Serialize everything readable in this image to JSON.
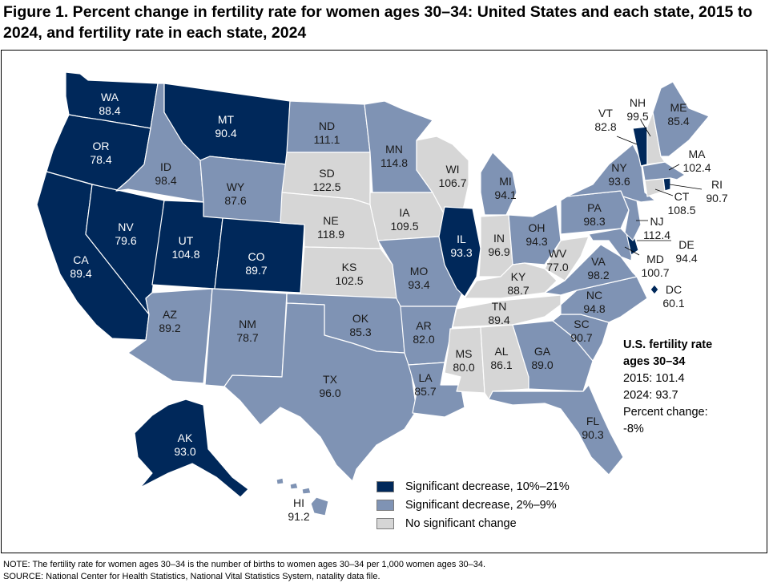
{
  "title": "Figure 1. Percent change in fertility rate for women ages 30–34: United States and each state, 2015 to 2024, and fertility rate in each state, 2024",
  "colors": {
    "sig_10_21": "#00285a",
    "sig_2_9": "#7f93b4",
    "no_change": "#d6d6d6"
  },
  "legend": {
    "sig_10_21": "Significant decrease, 10%–21%",
    "sig_2_9": "Significant decrease, 2%–9%",
    "no_change": "No significant change"
  },
  "us_summary": {
    "heading_line1": "U.S. fertility rate",
    "heading_line2": "ages 30–34",
    "y2015": "2015: 101.4",
    "y2024": "2024: 93.7",
    "pct_label": "Percent change:",
    "pct_value": "-8%"
  },
  "states": {
    "WA": {
      "name": "WA",
      "rate": "88.4",
      "category": "sig_10_21"
    },
    "OR": {
      "name": "OR",
      "rate": "78.4",
      "category": "sig_10_21"
    },
    "CA": {
      "name": "CA",
      "rate": "89.4",
      "category": "sig_10_21"
    },
    "NV": {
      "name": "NV",
      "rate": "79.6",
      "category": "sig_10_21"
    },
    "UT": {
      "name": "UT",
      "rate": "104.8",
      "category": "sig_10_21"
    },
    "CO": {
      "name": "CO",
      "rate": "89.7",
      "category": "sig_10_21"
    },
    "MT": {
      "name": "MT",
      "rate": "90.4",
      "category": "sig_10_21"
    },
    "IL": {
      "name": "IL",
      "rate": "93.3",
      "category": "sig_10_21"
    },
    "AK": {
      "name": "AK",
      "rate": "93.0",
      "category": "sig_10_21"
    },
    "VT": {
      "name": "VT",
      "rate": "82.8",
      "category": "sig_10_21"
    },
    "DE": {
      "name": "DE",
      "rate": "94.4",
      "category": "sig_10_21"
    },
    "DC": {
      "name": "DC",
      "rate": "60.1",
      "category": "sig_10_21"
    },
    "RI": {
      "name": "RI",
      "rate": "90.7",
      "category": "sig_10_21"
    },
    "ID": {
      "name": "ID",
      "rate": "98.4",
      "category": "sig_2_9"
    },
    "WY": {
      "name": "WY",
      "rate": "87.6",
      "category": "sig_2_9"
    },
    "ND": {
      "name": "ND",
      "rate": "111.1",
      "category": "sig_2_9"
    },
    "MN": {
      "name": "MN",
      "rate": "114.8",
      "category": "sig_2_9"
    },
    "MI": {
      "name": "MI",
      "rate": "94.1",
      "category": "sig_2_9"
    },
    "OH": {
      "name": "OH",
      "rate": "94.3",
      "category": "sig_2_9"
    },
    "PA": {
      "name": "PA",
      "rate": "98.3",
      "category": "sig_2_9"
    },
    "NY": {
      "name": "NY",
      "rate": "93.6",
      "category": "sig_2_9"
    },
    "ME": {
      "name": "ME",
      "rate": "85.4",
      "category": "sig_2_9"
    },
    "MA": {
      "name": "MA",
      "rate": "102.4",
      "category": "sig_2_9"
    },
    "NJ": {
      "name": "NJ",
      "rate": "112.4",
      "category": "sig_2_9"
    },
    "MD": {
      "name": "MD",
      "rate": "100.7",
      "category": "sig_2_9"
    },
    "VA": {
      "name": "VA",
      "rate": "98.2",
      "category": "sig_2_9"
    },
    "NC": {
      "name": "NC",
      "rate": "94.8",
      "category": "sig_2_9"
    },
    "SC": {
      "name": "SC",
      "rate": "90.7",
      "category": "sig_2_9"
    },
    "GA": {
      "name": "GA",
      "rate": "89.0",
      "category": "sig_2_9"
    },
    "FL": {
      "name": "FL",
      "rate": "90.3",
      "category": "sig_2_9"
    },
    "LA": {
      "name": "LA",
      "rate": "85.7",
      "category": "sig_2_9"
    },
    "AR": {
      "name": "AR",
      "rate": "82.0",
      "category": "sig_2_9"
    },
    "MO": {
      "name": "MO",
      "rate": "93.4",
      "category": "sig_2_9"
    },
    "OK": {
      "name": "OK",
      "rate": "85.3",
      "category": "sig_2_9"
    },
    "TX": {
      "name": "TX",
      "rate": "96.0",
      "category": "sig_2_9"
    },
    "NM": {
      "name": "NM",
      "rate": "78.7",
      "category": "sig_2_9"
    },
    "AZ": {
      "name": "AZ",
      "rate": "89.2",
      "category": "sig_2_9"
    },
    "HI": {
      "name": "HI",
      "rate": "91.2",
      "category": "sig_2_9"
    },
    "SD": {
      "name": "SD",
      "rate": "122.5",
      "category": "no_change"
    },
    "NE": {
      "name": "NE",
      "rate": "118.9",
      "category": "no_change"
    },
    "KS": {
      "name": "KS",
      "rate": "102.5",
      "category": "no_change"
    },
    "IA": {
      "name": "IA",
      "rate": "109.5",
      "category": "no_change"
    },
    "WI": {
      "name": "WI",
      "rate": "106.7",
      "category": "no_change"
    },
    "IN": {
      "name": "IN",
      "rate": "96.9",
      "category": "no_change"
    },
    "KY": {
      "name": "KY",
      "rate": "88.7",
      "category": "no_change"
    },
    "TN": {
      "name": "TN",
      "rate": "89.4",
      "category": "no_change"
    },
    "WV": {
      "name": "WV",
      "rate": "77.0",
      "category": "no_change"
    },
    "MS": {
      "name": "MS",
      "rate": "80.0",
      "category": "no_change"
    },
    "AL": {
      "name": "AL",
      "rate": "86.1",
      "category": "no_change"
    },
    "NH": {
      "name": "NH",
      "rate": "99.5",
      "category": "no_change"
    },
    "CT": {
      "name": "CT",
      "rate": "108.5",
      "category": "no_change"
    }
  },
  "note": "NOTE: The fertility rate for women ages 30–34 is the number of births to women ages 30–34 per 1,000 women ages 30–34.",
  "source": "SOURCE: National Center for Health Statistics, National Vital Statistics System, natality data file."
}
